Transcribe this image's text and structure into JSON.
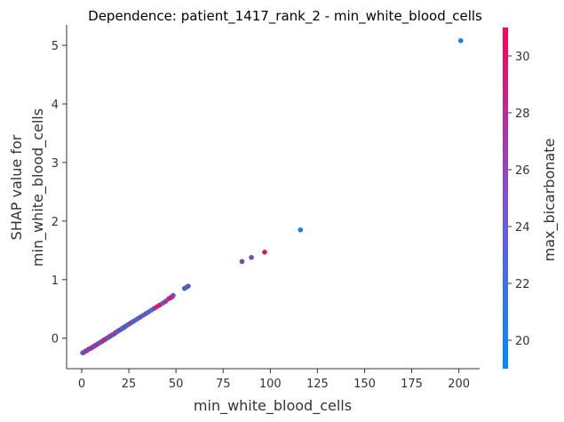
{
  "chart_data": {
    "type": "scatter",
    "title": "Dependence: patient_1417_rank_2 - min_white_blood_cells",
    "xlabel": "min_white_blood_cells",
    "ylabel_lines": [
      "SHAP value for",
      "min_white_blood_cells"
    ],
    "colorbar_label": "max_bicarbonate",
    "xlim": [
      -8,
      211
    ],
    "ylim": [
      -0.52,
      5.35
    ],
    "x_ticks": [
      0,
      25,
      50,
      75,
      100,
      125,
      150,
      175,
      200
    ],
    "y_ticks": [
      0,
      1,
      2,
      3,
      4,
      5
    ],
    "color_range": [
      19,
      31
    ],
    "color_ticks": [
      20,
      22,
      24,
      26,
      28,
      30
    ],
    "colormap": [
      "#008bfb",
      "#ff0052"
    ],
    "grid": false,
    "points": [
      {
        "x": 0.5,
        "y": -0.25,
        "c": 21
      },
      {
        "x": 1.2,
        "y": -0.24,
        "c": 27
      },
      {
        "x": 2.0,
        "y": -0.22,
        "c": 23
      },
      {
        "x": 2.8,
        "y": -0.21,
        "c": 29
      },
      {
        "x": 3.5,
        "y": -0.19,
        "c": 20
      },
      {
        "x": 4.2,
        "y": -0.18,
        "c": 28
      },
      {
        "x": 5.0,
        "y": -0.17,
        "c": 24
      },
      {
        "x": 5.8,
        "y": -0.15,
        "c": 30
      },
      {
        "x": 6.5,
        "y": -0.14,
        "c": 22
      },
      {
        "x": 7.3,
        "y": -0.12,
        "c": 27
      },
      {
        "x": 8.0,
        "y": -0.11,
        "c": 25
      },
      {
        "x": 8.8,
        "y": -0.09,
        "c": 29
      },
      {
        "x": 9.5,
        "y": -0.08,
        "c": 21
      },
      {
        "x": 10.3,
        "y": -0.06,
        "c": 28
      },
      {
        "x": 11.0,
        "y": -0.05,
        "c": 23
      },
      {
        "x": 11.8,
        "y": -0.03,
        "c": 30
      },
      {
        "x": 12.5,
        "y": -0.02,
        "c": 26
      },
      {
        "x": 13.3,
        "y": 0.0,
        "c": 29
      },
      {
        "x": 14.0,
        "y": 0.01,
        "c": 20
      },
      {
        "x": 14.8,
        "y": 0.03,
        "c": 28
      },
      {
        "x": 15.5,
        "y": 0.04,
        "c": 24
      },
      {
        "x": 16.3,
        "y": 0.06,
        "c": 27
      },
      {
        "x": 17.0,
        "y": 0.07,
        "c": 22
      },
      {
        "x": 17.8,
        "y": 0.09,
        "c": 29
      },
      {
        "x": 18.5,
        "y": 0.11,
        "c": 25
      },
      {
        "x": 19.3,
        "y": 0.12,
        "c": 21
      },
      {
        "x": 20.0,
        "y": 0.14,
        "c": 23
      },
      {
        "x": 20.8,
        "y": 0.15,
        "c": 28
      },
      {
        "x": 21.5,
        "y": 0.17,
        "c": 20
      },
      {
        "x": 22.3,
        "y": 0.18,
        "c": 22
      },
      {
        "x": 23.0,
        "y": 0.2,
        "c": 26
      },
      {
        "x": 24.0,
        "y": 0.22,
        "c": 21
      },
      {
        "x": 25.0,
        "y": 0.24,
        "c": 23
      },
      {
        "x": 26.0,
        "y": 0.26,
        "c": 27
      },
      {
        "x": 27.0,
        "y": 0.28,
        "c": 22
      },
      {
        "x": 28.0,
        "y": 0.3,
        "c": 24
      },
      {
        "x": 29.5,
        "y": 0.33,
        "c": 21
      },
      {
        "x": 31.0,
        "y": 0.36,
        "c": 25
      },
      {
        "x": 32.5,
        "y": 0.39,
        "c": 22
      },
      {
        "x": 34.0,
        "y": 0.42,
        "c": 24
      },
      {
        "x": 35.5,
        "y": 0.45,
        "c": 23
      },
      {
        "x": 37.0,
        "y": 0.48,
        "c": 21
      },
      {
        "x": 38.5,
        "y": 0.51,
        "c": 27
      },
      {
        "x": 40.0,
        "y": 0.54,
        "c": 28
      },
      {
        "x": 41.5,
        "y": 0.57,
        "c": 29
      },
      {
        "x": 43.0,
        "y": 0.6,
        "c": 23
      },
      {
        "x": 44.5,
        "y": 0.63,
        "c": 27
      },
      {
        "x": 46.0,
        "y": 0.67,
        "c": 24
      },
      {
        "x": 47.0,
        "y": 0.69,
        "c": 30
      },
      {
        "x": 48.0,
        "y": 0.71,
        "c": 29
      },
      {
        "x": 48.5,
        "y": 0.73,
        "c": 24
      },
      {
        "x": 54.5,
        "y": 0.85,
        "c": 23
      },
      {
        "x": 55.5,
        "y": 0.87,
        "c": 22
      },
      {
        "x": 56.5,
        "y": 0.89,
        "c": 23
      },
      {
        "x": 85.0,
        "y": 1.31,
        "c": 25
      },
      {
        "x": 90.0,
        "y": 1.38,
        "c": 24
      },
      {
        "x": 97.0,
        "y": 1.47,
        "c": 29
      },
      {
        "x": 116.0,
        "y": 1.85,
        "c": 20
      },
      {
        "x": 201.0,
        "y": 5.08,
        "c": 20
      }
    ]
  }
}
